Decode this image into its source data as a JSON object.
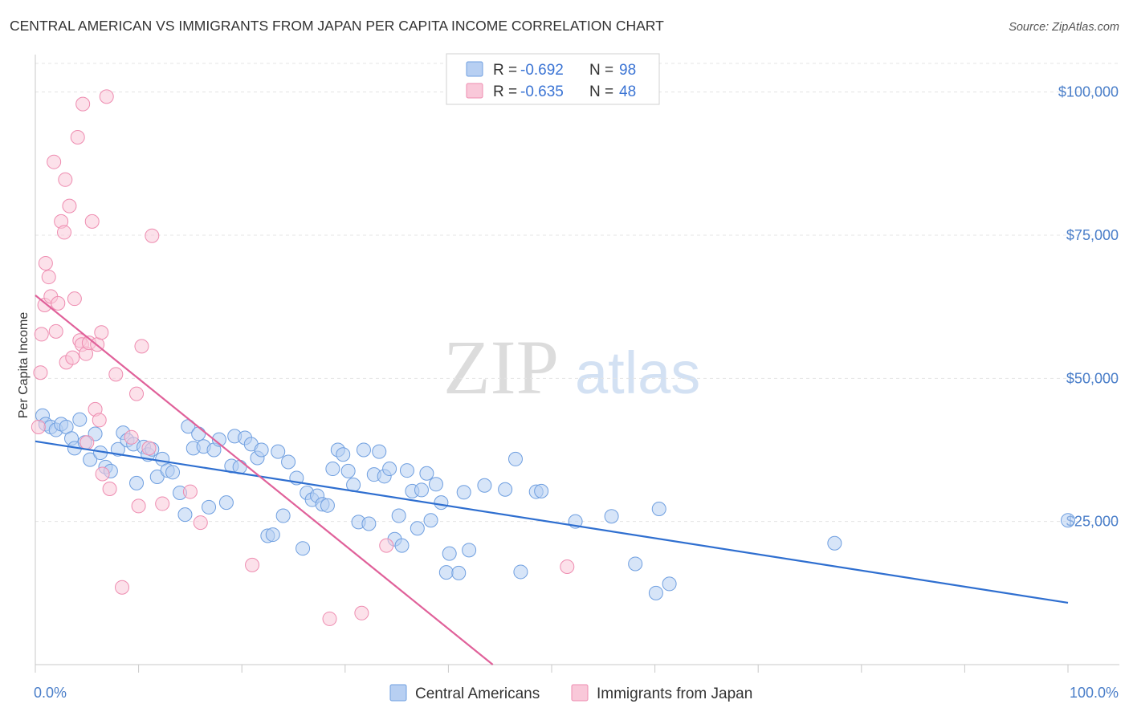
{
  "chart_data": {
    "type": "scatter",
    "title": "CENTRAL AMERICAN VS IMMIGRANTS FROM JAPAN PER CAPITA INCOME CORRELATION CHART",
    "source": "Source: ZipAtlas.com",
    "ylabel": "Per Capita Income",
    "xlim": [
      0,
      100
    ],
    "ylim": [
      0,
      105000
    ],
    "y_ticks": [
      {
        "value": 25000,
        "label": "$25,000"
      },
      {
        "value": 50000,
        "label": "$50,000"
      },
      {
        "value": 75000,
        "label": "$75,000"
      },
      {
        "value": 100000,
        "label": "$100,000"
      }
    ],
    "x_tick_labels": {
      "min": "0.0%",
      "max": "100.0%"
    },
    "x_minor_ticks": [
      0,
      10,
      20,
      30,
      40,
      50,
      60,
      70,
      80,
      90,
      100
    ],
    "watermark": {
      "left": "ZIP",
      "right": "atlas"
    },
    "legend_stats": [
      {
        "r_label": "R = ",
        "r_value": "-0.692",
        "n_label": "N = ",
        "n_value": "98"
      },
      {
        "r_label": "R = ",
        "r_value": "-0.635",
        "n_label": "N = ",
        "n_value": "48"
      }
    ],
    "series": [
      {
        "name": "Central Americans",
        "color": "#6f9fe0",
        "fill": "#b7cff2",
        "line_color": "#2f6fd0",
        "trend": {
          "x": [
            0,
            100
          ],
          "y": [
            39000,
            10800
          ]
        },
        "points": [
          [
            0.7,
            43500
          ],
          [
            1.0,
            42000
          ],
          [
            1.5,
            41500
          ],
          [
            2.0,
            41000
          ],
          [
            2.5,
            42000
          ],
          [
            3.0,
            41500
          ],
          [
            3.5,
            39500
          ],
          [
            3.8,
            37800
          ],
          [
            4.3,
            42800
          ],
          [
            4.8,
            38800
          ],
          [
            5.3,
            35800
          ],
          [
            5.8,
            40300
          ],
          [
            6.3,
            37000
          ],
          [
            6.8,
            34500
          ],
          [
            7.3,
            33800
          ],
          [
            8.0,
            37600
          ],
          [
            8.5,
            40500
          ],
          [
            8.9,
            39200
          ],
          [
            9.5,
            38500
          ],
          [
            9.8,
            31700
          ],
          [
            10.5,
            38000
          ],
          [
            10.9,
            36700
          ],
          [
            11.3,
            37600
          ],
          [
            11.8,
            32800
          ],
          [
            12.3,
            35900
          ],
          [
            12.8,
            33900
          ],
          [
            13.3,
            33600
          ],
          [
            14.0,
            30000
          ],
          [
            14.5,
            26200
          ],
          [
            14.8,
            41600
          ],
          [
            15.3,
            37800
          ],
          [
            15.8,
            40300
          ],
          [
            16.3,
            38100
          ],
          [
            16.8,
            27500
          ],
          [
            17.3,
            37500
          ],
          [
            17.8,
            39300
          ],
          [
            18.5,
            28300
          ],
          [
            19.0,
            34700
          ],
          [
            19.3,
            39900
          ],
          [
            19.8,
            34500
          ],
          [
            20.3,
            39600
          ],
          [
            20.9,
            38500
          ],
          [
            21.5,
            36100
          ],
          [
            21.9,
            37500
          ],
          [
            22.5,
            22500
          ],
          [
            23.0,
            22700
          ],
          [
            23.5,
            37200
          ],
          [
            24.0,
            26000
          ],
          [
            24.5,
            35400
          ],
          [
            25.3,
            32600
          ],
          [
            25.9,
            20300
          ],
          [
            26.3,
            30000
          ],
          [
            26.8,
            28800
          ],
          [
            27.3,
            29500
          ],
          [
            27.8,
            28000
          ],
          [
            28.3,
            27800
          ],
          [
            28.8,
            34200
          ],
          [
            29.3,
            37500
          ],
          [
            29.8,
            36700
          ],
          [
            30.3,
            33800
          ],
          [
            30.8,
            31400
          ],
          [
            31.3,
            24900
          ],
          [
            31.8,
            37500
          ],
          [
            32.3,
            24600
          ],
          [
            32.8,
            33200
          ],
          [
            33.3,
            37200
          ],
          [
            33.8,
            32900
          ],
          [
            34.3,
            34200
          ],
          [
            34.8,
            21900
          ],
          [
            35.2,
            26000
          ],
          [
            35.5,
            20800
          ],
          [
            36.0,
            33900
          ],
          [
            36.5,
            30300
          ],
          [
            37.0,
            23800
          ],
          [
            37.4,
            30500
          ],
          [
            37.9,
            33400
          ],
          [
            38.3,
            25200
          ],
          [
            38.8,
            31500
          ],
          [
            39.3,
            28300
          ],
          [
            39.8,
            16100
          ],
          [
            40.1,
            19400
          ],
          [
            41.0,
            16000
          ],
          [
            41.5,
            30100
          ],
          [
            42.0,
            20000
          ],
          [
            43.5,
            31300
          ],
          [
            45.5,
            30600
          ],
          [
            46.5,
            35900
          ],
          [
            47.0,
            16200
          ],
          [
            48.5,
            30200
          ],
          [
            49.0,
            30300
          ],
          [
            52.3,
            25000
          ],
          [
            55.8,
            25900
          ],
          [
            58.1,
            17600
          ],
          [
            60.1,
            12500
          ],
          [
            60.4,
            27200
          ],
          [
            61.4,
            14100
          ],
          [
            77.4,
            21200
          ],
          [
            100.0,
            25200
          ]
        ]
      },
      {
        "name": "Immigrants from Japan",
        "color": "#ee8cb0",
        "fill": "#f9c8d9",
        "line_color": "#e0619a",
        "trend": {
          "x": [
            0,
            44.3
          ],
          "y": [
            64500,
            0
          ]
        },
        "points": [
          [
            0.3,
            41500
          ],
          [
            0.5,
            51000
          ],
          [
            0.6,
            57700
          ],
          [
            0.9,
            62800
          ],
          [
            1.0,
            70100
          ],
          [
            1.3,
            67700
          ],
          [
            1.5,
            64300
          ],
          [
            1.8,
            87800
          ],
          [
            2.0,
            58200
          ],
          [
            2.2,
            63100
          ],
          [
            2.5,
            77400
          ],
          [
            2.8,
            75500
          ],
          [
            2.9,
            84700
          ],
          [
            3.0,
            52800
          ],
          [
            3.3,
            80100
          ],
          [
            3.6,
            53600
          ],
          [
            3.8,
            63900
          ],
          [
            4.1,
            92100
          ],
          [
            4.3,
            56600
          ],
          [
            4.5,
            55900
          ],
          [
            4.6,
            97900
          ],
          [
            4.9,
            54300
          ],
          [
            5.0,
            38800
          ],
          [
            5.2,
            56200
          ],
          [
            5.5,
            77400
          ],
          [
            5.8,
            44600
          ],
          [
            6.0,
            55900
          ],
          [
            6.2,
            42700
          ],
          [
            6.4,
            58000
          ],
          [
            6.5,
            33300
          ],
          [
            6.9,
            99200
          ],
          [
            7.2,
            30700
          ],
          [
            7.8,
            50700
          ],
          [
            8.4,
            13500
          ],
          [
            9.3,
            39700
          ],
          [
            9.8,
            47300
          ],
          [
            10.0,
            27700
          ],
          [
            10.3,
            55600
          ],
          [
            11.0,
            37800
          ],
          [
            11.3,
            74900
          ],
          [
            12.3,
            28100
          ],
          [
            15.0,
            30200
          ],
          [
            16.0,
            24800
          ],
          [
            21.0,
            17400
          ],
          [
            28.5,
            8000
          ],
          [
            31.6,
            9000
          ],
          [
            34.0,
            20800
          ],
          [
            51.5,
            17100
          ]
        ]
      }
    ]
  }
}
